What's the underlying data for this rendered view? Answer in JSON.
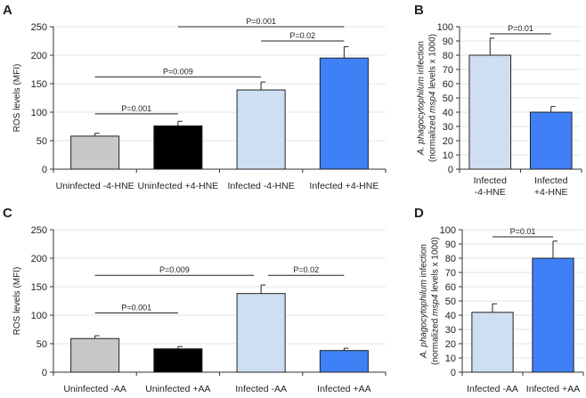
{
  "chart_data": [
    {
      "panel": "A",
      "type": "bar",
      "categories": [
        "Uninfected -4-HNE",
        "Uninfected +4-HNE",
        "Infected -4-HNE",
        "Infected +4-HNE"
      ],
      "category_lines": [
        [
          "Uninfected -4-HNE"
        ],
        [
          "Uninfected +4-HNE"
        ],
        [
          "Infected -4-HNE"
        ],
        [
          "Infected +4-HNE"
        ]
      ],
      "values": [
        58,
        76,
        139,
        195
      ],
      "errors": [
        5,
        8,
        14,
        20
      ],
      "colors": [
        "#c8c8c8",
        "#000000",
        "#cfdff2",
        "#3f80f7"
      ],
      "ylabel_parts": [
        [
          {
            "text": "ROS levels (MFI)",
            "italic": false
          }
        ]
      ],
      "ylim": [
        0,
        250
      ],
      "yticks": [
        0,
        50,
        100,
        150,
        200,
        250
      ],
      "grid": true,
      "significance": [
        {
          "from": 0,
          "to": 1,
          "y": 97,
          "label": "P=0.001"
        },
        {
          "from": 0,
          "to": 2,
          "y": 162,
          "label": "P=0.009"
        },
        {
          "from": 2,
          "to": 3,
          "y": 225,
          "label": "P=0.02"
        },
        {
          "from": 1,
          "to": 3,
          "y": 250,
          "label": "P=0.001"
        }
      ]
    },
    {
      "panel": "B",
      "type": "bar",
      "categories": [
        "Infected -4-HNE",
        "Infected +4-HNE"
      ],
      "category_lines": [
        [
          "Infected",
          "-4-HNE"
        ],
        [
          "Infected",
          "+4-HNE"
        ]
      ],
      "values": [
        80,
        40
      ],
      "errors": [
        12,
        4
      ],
      "colors": [
        "#cfdff2",
        "#3f80f7"
      ],
      "ylabel_parts": [
        [
          {
            "text": "A. phagocytophilum",
            "italic": true
          },
          {
            "text": " infection",
            "italic": false
          }
        ],
        [
          {
            "text": "(normalized ",
            "italic": false
          },
          {
            "text": "msp4",
            "italic": true
          },
          {
            "text": " levels x 1000)",
            "italic": false
          }
        ]
      ],
      "ylim": [
        0,
        100
      ],
      "yticks": [
        0,
        10,
        20,
        30,
        40,
        50,
        60,
        70,
        80,
        90,
        100
      ],
      "grid": true,
      "significance": [
        {
          "from": 0,
          "to": 1,
          "y": 95,
          "label": "P=0.01"
        }
      ]
    },
    {
      "panel": "C",
      "type": "bar",
      "categories": [
        "Uninfected -AA",
        "Uninfected +AA",
        "Infected -AA",
        "Infected +AA"
      ],
      "category_lines": [
        [
          "Uninfected -AA"
        ],
        [
          "Uninfected +AA"
        ],
        [
          "Infected -AA"
        ],
        [
          "Infected +AA"
        ]
      ],
      "values": [
        59,
        41,
        138,
        38
      ],
      "errors": [
        5,
        4,
        15,
        4
      ],
      "colors": [
        "#c8c8c8",
        "#000000",
        "#cfdff2",
        "#3f80f7"
      ],
      "ylabel_parts": [
        [
          {
            "text": "ROS levels (MFI)",
            "italic": false
          }
        ]
      ],
      "ylim": [
        0,
        250
      ],
      "yticks": [
        0,
        50,
        100,
        150,
        200,
        250
      ],
      "grid": true,
      "significance": [
        {
          "from": 0,
          "to": 1,
          "y": 104,
          "label": "P=0.001"
        },
        {
          "from": 0,
          "to": 2,
          "y": 170,
          "label": "P=0.009"
        },
        {
          "from": 2,
          "to": 3,
          "y": 170,
          "label": "P=0.02"
        }
      ]
    },
    {
      "panel": "D",
      "type": "bar",
      "categories": [
        "Infected -AA",
        "Infected +AA"
      ],
      "category_lines": [
        [
          "Infected -AA"
        ],
        [
          "Infected +AA"
        ]
      ],
      "values": [
        42,
        80
      ],
      "errors": [
        6,
        12
      ],
      "colors": [
        "#cfdff2",
        "#3f80f7"
      ],
      "ylabel_parts": [
        [
          {
            "text": "A. phagocytophilum",
            "italic": true
          },
          {
            "text": " infection",
            "italic": false
          }
        ],
        [
          {
            "text": "(normalized ",
            "italic": false
          },
          {
            "text": "msp4",
            "italic": true
          },
          {
            "text": " levels x 1000)",
            "italic": false
          }
        ]
      ],
      "ylim": [
        0,
        100
      ],
      "yticks": [
        0,
        10,
        20,
        30,
        40,
        50,
        60,
        70,
        80,
        90,
        100
      ],
      "grid": true,
      "significance": [
        {
          "from": 0,
          "to": 1,
          "y": 95,
          "label": "P=0.01"
        }
      ]
    }
  ]
}
